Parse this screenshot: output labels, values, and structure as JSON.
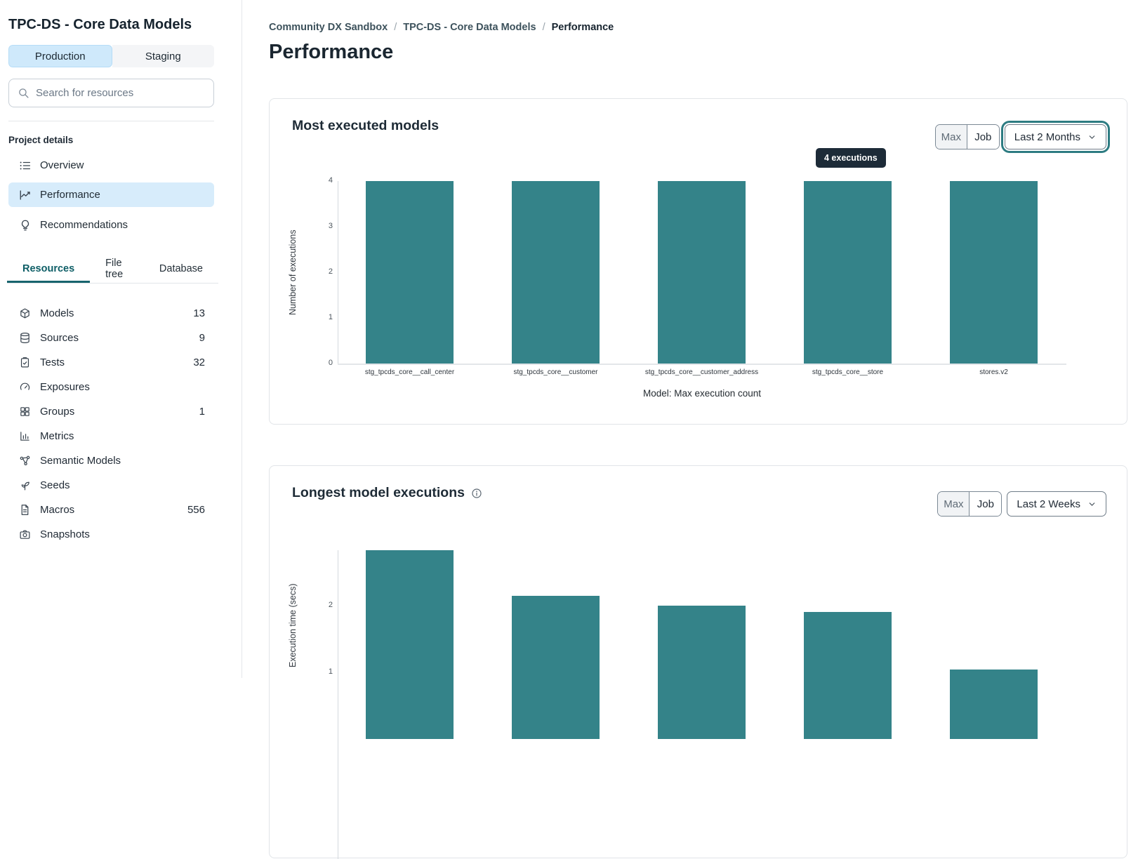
{
  "sidebar": {
    "project_title": "TPC-DS - Core Data Models",
    "environment_tabs": [
      {
        "label": "Production",
        "active": true
      },
      {
        "label": "Staging",
        "active": false
      }
    ],
    "search_placeholder": "Search for resources",
    "section_label": "Project details",
    "nav_items": [
      {
        "label": "Overview",
        "icon": "list-icon",
        "active": false
      },
      {
        "label": "Performance",
        "icon": "line-chart-icon",
        "active": true
      },
      {
        "label": "Recommendations",
        "icon": "lightbulb-icon",
        "active": false
      }
    ],
    "resource_tabs": [
      {
        "label": "Resources",
        "active": true
      },
      {
        "label": "File tree",
        "active": false
      },
      {
        "label": "Database",
        "active": false
      }
    ],
    "resources": [
      {
        "label": "Models",
        "icon": "cube-icon",
        "count": "13"
      },
      {
        "label": "Sources",
        "icon": "database-icon",
        "count": "9"
      },
      {
        "label": "Tests",
        "icon": "clipboard-check-icon",
        "count": "32"
      },
      {
        "label": "Exposures",
        "icon": "gauge-icon",
        "count": ""
      },
      {
        "label": "Groups",
        "icon": "grid-icon",
        "count": "1"
      },
      {
        "label": "Metrics",
        "icon": "bar-chart-icon",
        "count": ""
      },
      {
        "label": "Semantic Models",
        "icon": "network-icon",
        "count": ""
      },
      {
        "label": "Seeds",
        "icon": "seedling-icon",
        "count": ""
      },
      {
        "label": "Macros",
        "icon": "file-text-icon",
        "count": "556"
      },
      {
        "label": "Snapshots",
        "icon": "camera-icon",
        "count": ""
      }
    ]
  },
  "main": {
    "breadcrumb": [
      "Community DX Sandbox",
      "TPC-DS - Core Data Models",
      "Performance"
    ],
    "separator": "/",
    "page_title": "Performance"
  },
  "colors": {
    "bar_teal": "#348389",
    "selected_blue": "#d7ecfb",
    "tab_blue": "#cfe9fb",
    "active_tab_teal": "#0e5e66",
    "focus_ring_teal": "#2e7c82",
    "tooltip_bg": "#1d2b38"
  },
  "chart_data": [
    {
      "type": "bar",
      "title": "Most executed models",
      "categories": [
        "stg_tpcds_core__call_center",
        "stg_tpcds_core__customer",
        "stg_tpcds_core__customer_address",
        "stg_tpcds_core__store",
        "stores.v2"
      ],
      "values": [
        4,
        4,
        4,
        4,
        4
      ],
      "xlabel": "Model: Max execution count",
      "ylabel": "Number of executions",
      "ylim": [
        0,
        4
      ],
      "yticks": [
        0,
        1,
        2,
        3,
        4
      ],
      "grid": false,
      "bar_color": "#348389",
      "tooltip": "4 executions",
      "controls": {
        "segmented": [
          "Max",
          "Job"
        ],
        "selected_segment": "Max",
        "range_dropdown": "Last 2 Months",
        "dropdown_focused": true
      }
    },
    {
      "type": "bar",
      "title": "Longest model executions",
      "values": [
        2.83,
        2.15,
        2.0,
        1.91,
        1.04
      ],
      "ylabel": "Execution time (secs)",
      "yticks": [
        1,
        2
      ],
      "grid": false,
      "bar_color": "#348389",
      "controls": {
        "segmented": [
          "Max",
          "Job"
        ],
        "selected_segment": "Max",
        "range_dropdown": "Last 2 Weeks",
        "dropdown_focused": false
      }
    }
  ]
}
